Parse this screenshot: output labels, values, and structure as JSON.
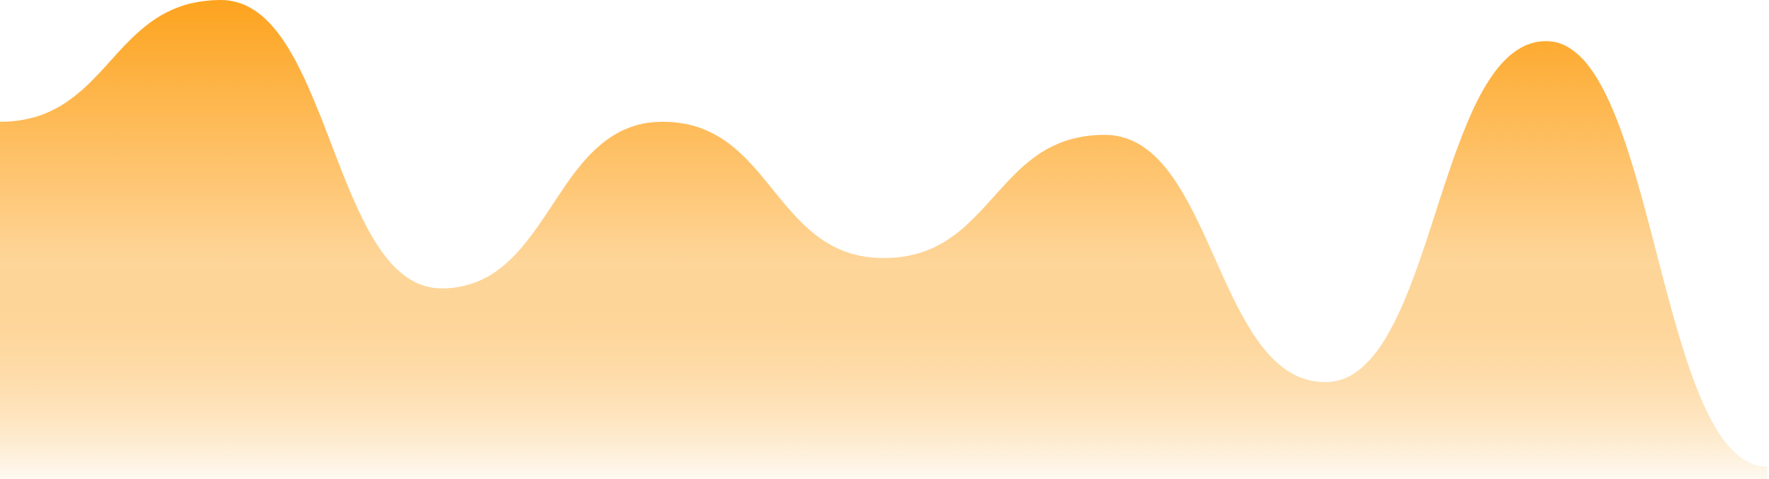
{
  "chart_data": {
    "type": "area",
    "title": "",
    "xlabel": "",
    "ylabel": "",
    "grid": false,
    "legend": "none",
    "axes_visible": false,
    "x": [
      0,
      1,
      2,
      3,
      4,
      5,
      6,
      7,
      8
    ],
    "series": [
      {
        "values": [
          0.739,
          1.0,
          0.382,
          0.739,
          0.447,
          0.711,
          0.181,
          0.912,
          0.0
        ],
        "fill_gradient": {
          "top": "#fda31e",
          "bottom": "#fef9f1"
        }
      }
    ],
    "ylim": [
      0,
      1
    ]
  }
}
